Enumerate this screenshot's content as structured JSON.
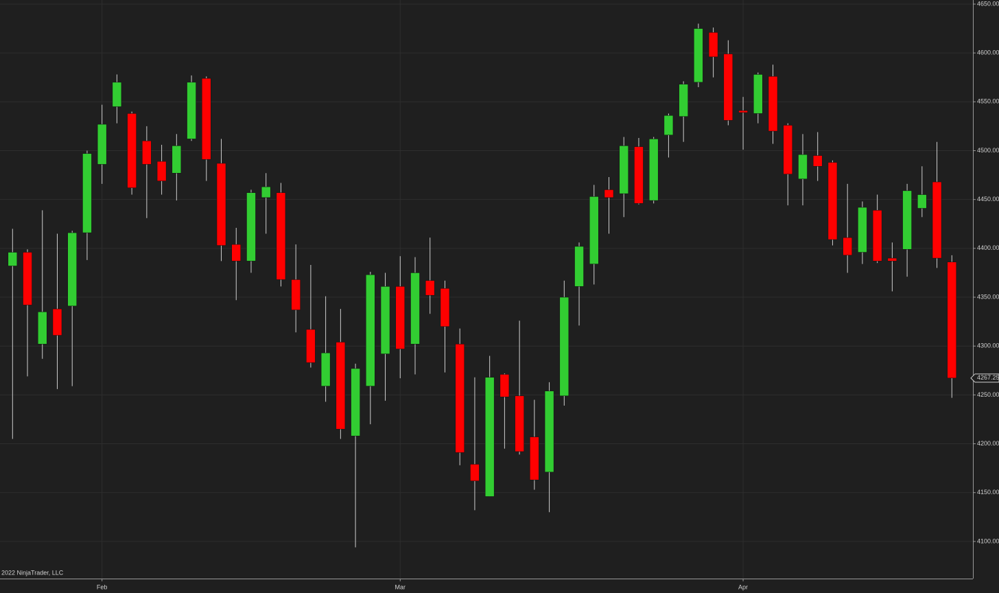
{
  "chart_data": {
    "type": "candlestick",
    "categories": [
      null,
      null,
      null,
      null,
      null,
      null,
      "Feb",
      null,
      null,
      null,
      null,
      null,
      null,
      null,
      null,
      null,
      null,
      null,
      null,
      null,
      null,
      null,
      null,
      null,
      null,
      null,
      "Mar",
      null,
      null,
      null,
      null,
      null,
      null,
      null,
      null,
      null,
      null,
      null,
      null,
      null,
      null,
      null,
      null,
      null,
      null,
      null,
      null,
      null,
      null,
      "Apr",
      null,
      null,
      null,
      null,
      null,
      null,
      null,
      null,
      null,
      null,
      null,
      null,
      null,
      null
    ],
    "open": [
      4382,
      4396,
      4302,
      4338,
      4341,
      4416,
      4486,
      4545,
      4538,
      4510,
      4489,
      4477,
      4512,
      4574,
      4487,
      4404,
      4387,
      4452,
      4457,
      4368,
      4317,
      4259,
      4304,
      4208,
      4259,
      4292,
      4361,
      4302,
      4367,
      4359,
      4302,
      4179,
      4146,
      4271,
      4249,
      4207,
      4171,
      4249,
      4361,
      4384,
      4460,
      4456,
      4504,
      4449,
      4516,
      4535,
      4570,
      4621,
      4599,
      4541,
      4538,
      4576,
      4526,
      4471,
      4495,
      4488,
      4411,
      4396,
      4439,
      4390,
      4399,
      4441,
      4468,
      4386
    ],
    "high": [
      4420,
      4399,
      4439,
      4415,
      4418,
      4500,
      4547,
      4578,
      4540,
      4525,
      4506,
      4517,
      4577,
      4576,
      4512,
      4421,
      4460,
      4477,
      4467,
      4404,
      4383,
      4351,
      4338,
      4282,
      4376,
      4375,
      4392,
      4391,
      4411,
      4367,
      4318,
      4268,
      4290,
      4272,
      4326,
      4245,
      4263,
      4367,
      4406,
      4465,
      4473,
      4514,
      4513,
      4514,
      4538,
      4571,
      4630,
      4626,
      4613,
      4555,
      4580,
      4588,
      4528,
      4517,
      4519,
      4490,
      4466,
      4448,
      4455,
      4406,
      4466,
      4484,
      4509,
      4393
    ],
    "low": [
      4205,
      4269,
      4287,
      4256,
      4259,
      4388,
      4466,
      4528,
      4455,
      4431,
      4455,
      4449,
      4510,
      4469,
      4387,
      4347,
      4375,
      4415,
      4361,
      4314,
      4278,
      4243,
      4205,
      4094,
      4220,
      4244,
      4267,
      4271,
      4333,
      4273,
      4178,
      4132,
      4146,
      4195,
      4189,
      4153,
      4130,
      4239,
      4321,
      4363,
      4415,
      4432,
      4445,
      4446,
      4493,
      4509,
      4565,
      4575,
      4526,
      4501,
      4528,
      4507,
      4444,
      4444,
      4469,
      4403,
      4375,
      4384,
      4385,
      4356,
      4371,
      4432,
      4380,
      4247
    ],
    "close": [
      4396,
      4342,
      4335,
      4311,
      4416,
      4497,
      4527,
      4570,
      4462,
      4486,
      4469,
      4505,
      4570,
      4491,
      4403,
      4387,
      4457,
      4463,
      4368,
      4337,
      4283,
      4293,
      4215,
      4277,
      4373,
      4361,
      4297,
      4375,
      4352,
      4320,
      4191,
      4162,
      4268,
      4248,
      4192,
      4163,
      4254,
      4350,
      4402,
      4453,
      4452,
      4505,
      4446,
      4512,
      4536,
      4568,
      4625,
      4596,
      4531,
      4539,
      4578,
      4520,
      4476,
      4496,
      4484,
      4409,
      4393,
      4442,
      4387,
      4387,
      4459,
      4455,
      4390,
      4267.25
    ],
    "up_color": "#32cd32",
    "down_color": "#ff0000",
    "ylim": [
      4062,
      4654.2
    ],
    "yticks": [
      {
        "value": 4100,
        "label": "4100.00"
      },
      {
        "value": 4150,
        "label": "4150.00"
      },
      {
        "value": 4200,
        "label": "4200.00"
      },
      {
        "value": 4250,
        "label": "4250.00"
      },
      {
        "value": 4300,
        "label": "4300.00"
      },
      {
        "value": 4350,
        "label": "4350.00"
      },
      {
        "value": 4400,
        "label": "4400.00"
      },
      {
        "value": 4450,
        "label": "4450.00"
      },
      {
        "value": 4500,
        "label": "4500.00"
      },
      {
        "value": 4550,
        "label": "4550.00"
      },
      {
        "value": 4600,
        "label": "4600.00"
      },
      {
        "value": 4650,
        "label": "4650.00"
      }
    ],
    "grid": true,
    "copyright": "2022 NinjaTrader, LLC"
  }
}
